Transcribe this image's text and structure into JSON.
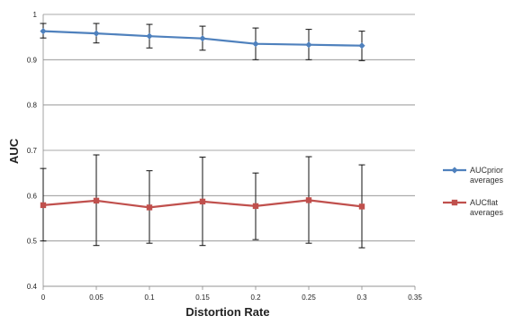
{
  "chart_data": {
    "type": "line",
    "title": "",
    "xlabel": "Distortion Rate",
    "ylabel": "AUC",
    "xlim": [
      0,
      0.35
    ],
    "ylim": [
      0.4,
      1.0
    ],
    "xticks": [
      "0",
      "0.05",
      "0.1",
      "0.15",
      "0.2",
      "0.25",
      "0.3",
      "0.35"
    ],
    "yticks": [
      "0.4",
      "0.5",
      "0.6",
      "0.7",
      "0.8",
      "0.9",
      "1"
    ],
    "grid": "horizontal",
    "legend_position": "right",
    "x": [
      0,
      0.05,
      0.1,
      0.15,
      0.2,
      0.25,
      0.3
    ],
    "series": [
      {
        "name": "AUCprior averages",
        "name_lines": [
          "AUCprior",
          "averages"
        ],
        "marker": "diamond",
        "color": "#4f81bd",
        "values": [
          0.963,
          0.958,
          0.952,
          0.947,
          0.935,
          0.933,
          0.931
        ],
        "error_low": [
          0.948,
          0.937,
          0.926,
          0.921,
          0.9,
          0.9,
          0.898
        ],
        "error_high": [
          0.98,
          0.98,
          0.978,
          0.974,
          0.97,
          0.967,
          0.963
        ]
      },
      {
        "name": "AUCflat averages",
        "name_lines": [
          "AUCflat",
          "averages"
        ],
        "marker": "square",
        "color": "#c0504d",
        "values": [
          0.579,
          0.589,
          0.574,
          0.587,
          0.577,
          0.59,
          0.576
        ],
        "error_low": [
          0.5,
          0.49,
          0.495,
          0.49,
          0.503,
          0.495,
          0.485
        ],
        "error_high": [
          0.66,
          0.69,
          0.655,
          0.685,
          0.65,
          0.686,
          0.668
        ]
      }
    ]
  }
}
